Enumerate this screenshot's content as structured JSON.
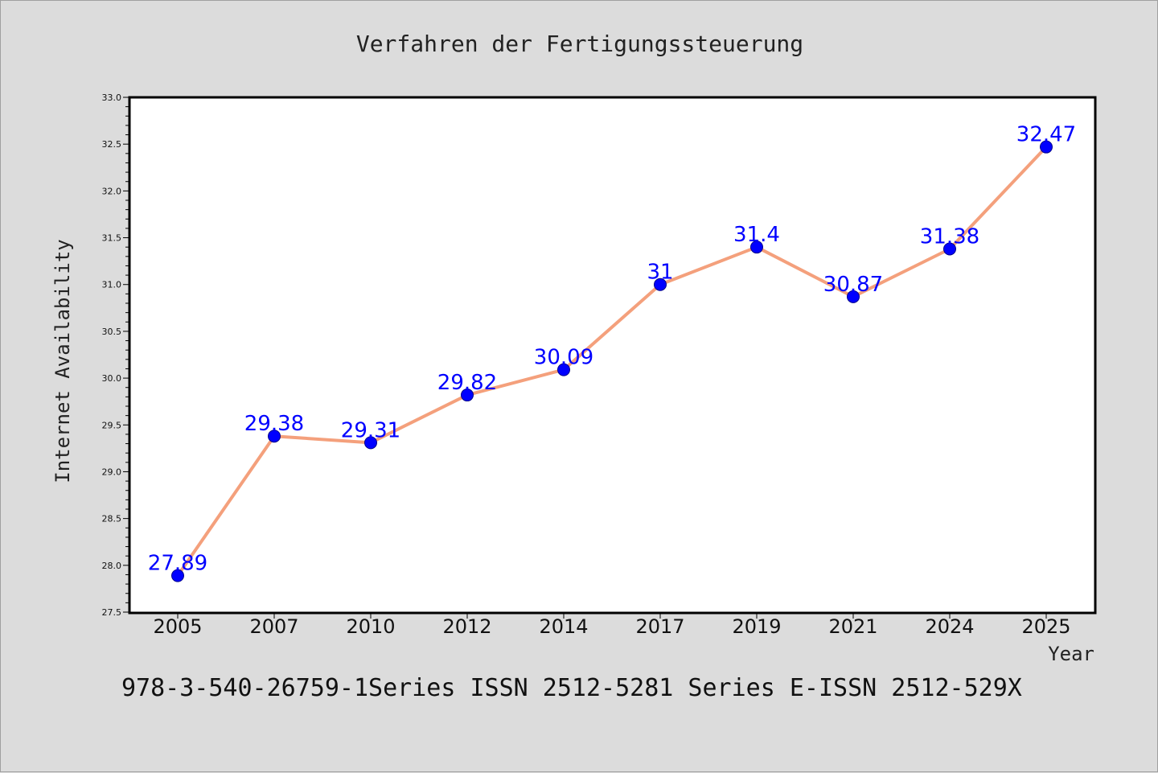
{
  "chart_data": {
    "type": "line",
    "title": "Verfahren der Fertigungssteuerung",
    "xlabel": "Year",
    "ylabel": "Internet Availability",
    "categories": [
      "2005",
      "2007",
      "2010",
      "2012",
      "2014",
      "2017",
      "2019",
      "2021",
      "2024",
      "2025"
    ],
    "series": [
      {
        "values": [
          27.89,
          29.38,
          29.31,
          29.82,
          30.09,
          31,
          31.4,
          30.87,
          31.38,
          32.47
        ],
        "data_labels": [
          "27.89",
          "29.38",
          "29.31",
          "29.82",
          "30.09",
          "31",
          "31.4",
          "30.87",
          "31.38",
          "32.47"
        ],
        "line_color": "#f4a07c",
        "marker_color": "#0000ff"
      }
    ],
    "ylim": [
      27.5,
      33.0
    ],
    "yticks": [
      "27.5",
      "28.0",
      "28.5",
      "29.0",
      "29.5",
      "30.0",
      "30.5",
      "31.0",
      "31.5",
      "32.0",
      "32.5",
      "33.0"
    ],
    "grid": false,
    "legend": "none"
  },
  "footer": {
    "text": "978-3-540-26759-1Series ISSN 2512-5281 Series E-ISSN 2512-529X"
  },
  "colors": {
    "background": "#dcdcdc",
    "plot_background": "#ffffff",
    "line": "#f4a07c",
    "marker": "#0000ff",
    "data_label": "#0000ff"
  }
}
